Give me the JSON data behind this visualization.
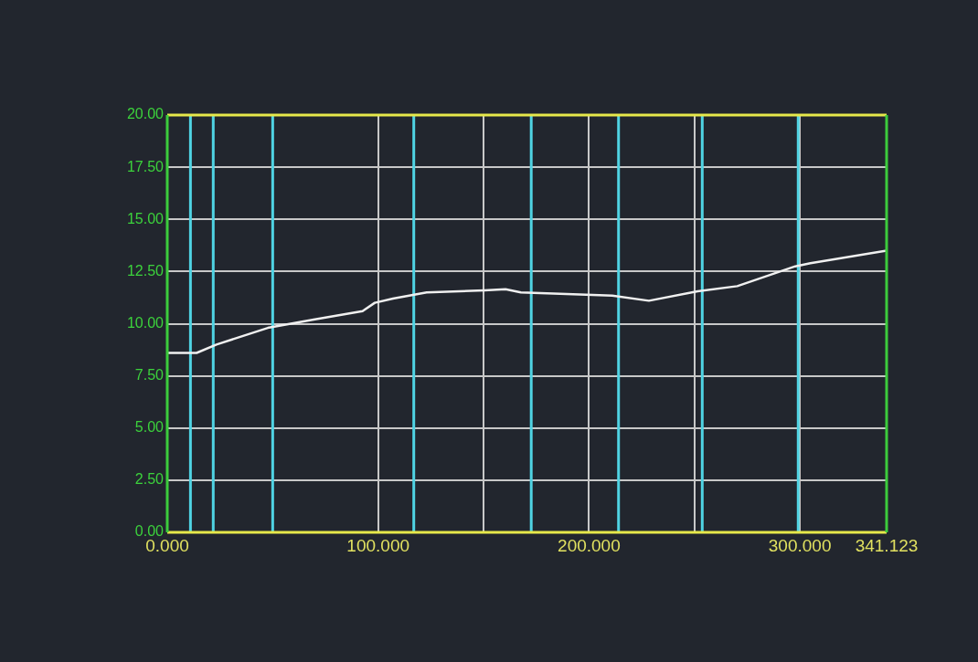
{
  "chart_data": {
    "type": "line",
    "x": [
      0,
      13.9,
      23.3,
      47.7,
      69.4,
      92.6,
      98.4,
      107,
      123,
      150.4,
      160.4,
      167.7,
      211,
      228.4,
      251.5,
      270.3,
      297.8,
      305,
      341.123
    ],
    "series": [
      {
        "color": "#f0f0f0",
        "values": [
          8.6,
          8.6,
          9.0,
          9.8,
          10.2,
          10.6,
          11.0,
          11.2,
          11.5,
          11.6,
          11.65,
          11.5,
          11.35,
          11.1,
          11.55,
          11.8,
          12.75,
          12.9,
          13.5
        ]
      }
    ],
    "xlim": [
      0,
      341.123
    ],
    "xticks": [
      {
        "value": 0,
        "label": "0.000"
      },
      {
        "value": 50,
        "label": null
      },
      {
        "value": 100,
        "label": "100.000"
      },
      {
        "value": 150,
        "label": null
      },
      {
        "value": 200,
        "label": "200.000"
      },
      {
        "value": 250,
        "label": null
      },
      {
        "value": 300,
        "label": "300.000"
      },
      {
        "value": 341.123,
        "label": "341.123"
      }
    ],
    "ylim": [
      0,
      20
    ],
    "yticks": [
      {
        "value": 0,
        "label": "0.00"
      },
      {
        "value": 2.5,
        "label": "2.50"
      },
      {
        "value": 5,
        "label": "5.00"
      },
      {
        "value": 7.5,
        "label": "7.50"
      },
      {
        "value": 10,
        "label": "10.00"
      },
      {
        "value": 12.5,
        "label": "12.50"
      },
      {
        "value": 15,
        "label": "15.00"
      },
      {
        "value": 17.5,
        "label": "17.50"
      },
      {
        "value": 20,
        "label": "20.00"
      }
    ],
    "ref_lines": [
      {
        "axis": "x",
        "value": 11,
        "color": "#4fd3e3"
      },
      {
        "axis": "x",
        "value": 21.8,
        "color": "#4fd3e3"
      },
      {
        "axis": "x",
        "value": 50,
        "color": "#4fd3e3"
      },
      {
        "axis": "x",
        "value": 116.9,
        "color": "#4fd3e3"
      },
      {
        "axis": "x",
        "value": 172.6,
        "color": "#4fd3e3"
      },
      {
        "axis": "x",
        "value": 214,
        "color": "#4fd3e3"
      },
      {
        "axis": "x",
        "value": 253.7,
        "color": "#4fd3e3"
      },
      {
        "axis": "x",
        "value": 299.2,
        "color": "#4fd3e3"
      }
    ],
    "grid": true,
    "legend": false,
    "marker": "none",
    "line_style": "solid"
  }
}
